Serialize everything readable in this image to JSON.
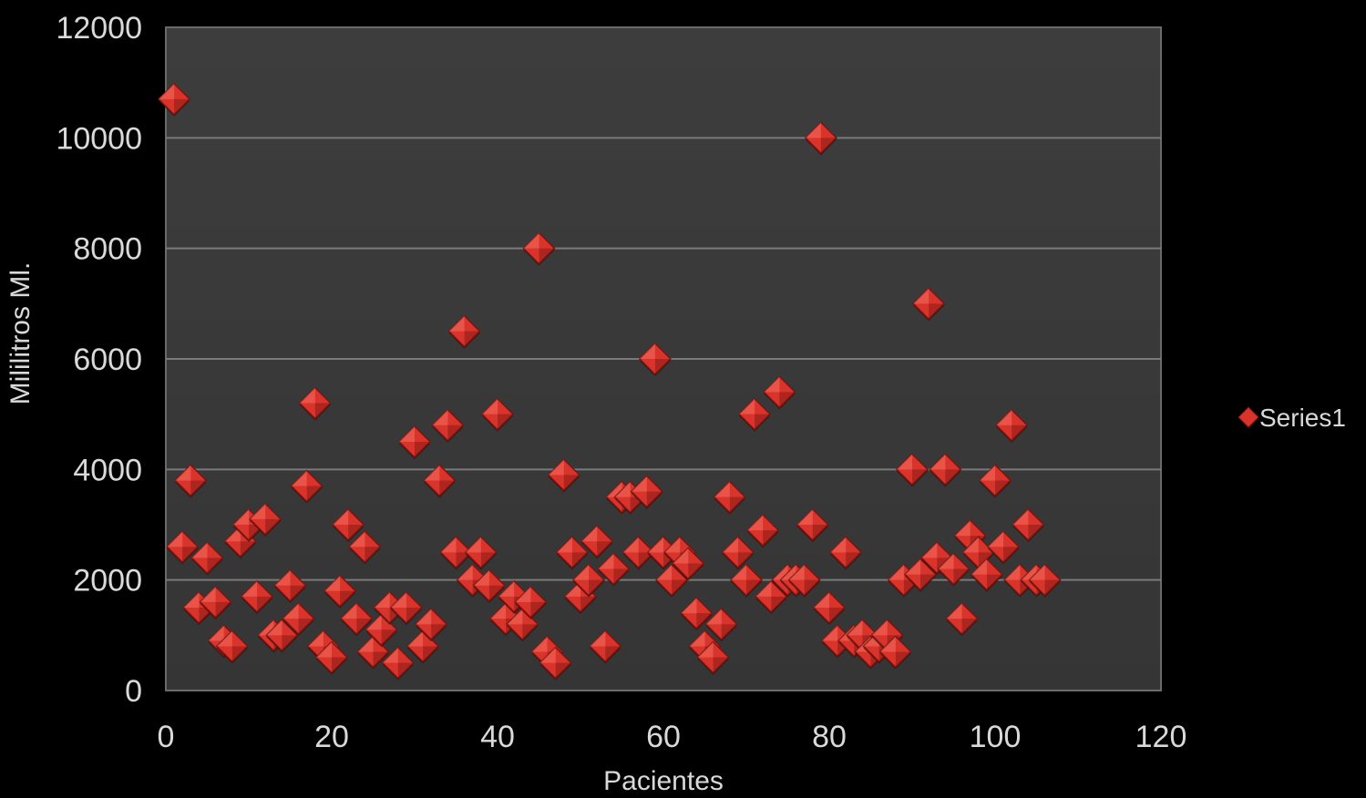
{
  "chart_data": {
    "type": "scatter",
    "title": "",
    "xlabel": "Pacientes",
    "ylabel": "Mililitros Ml.",
    "xlim": [
      0,
      120
    ],
    "ylim": [
      0,
      12000
    ],
    "x_ticks": [
      0,
      20,
      40,
      60,
      80,
      100,
      120
    ],
    "y_ticks": [
      0,
      2000,
      4000,
      6000,
      8000,
      10000,
      12000
    ],
    "grid": "horizontal",
    "legend_position": "right",
    "marker_color": "#d9342b",
    "plot_background": "#3a3a3a",
    "page_background": "#000000",
    "series": [
      {
        "name": "Series1",
        "marker": "diamond",
        "points": [
          [
            1,
            10700
          ],
          [
            2,
            2600
          ],
          [
            3,
            3800
          ],
          [
            4,
            1500
          ],
          [
            5,
            2400
          ],
          [
            6,
            1600
          ],
          [
            7,
            900
          ],
          [
            8,
            800
          ],
          [
            9,
            2700
          ],
          [
            10,
            3000
          ],
          [
            11,
            1700
          ],
          [
            12,
            3100
          ],
          [
            13,
            1000
          ],
          [
            14,
            1000
          ],
          [
            15,
            1900
          ],
          [
            16,
            1300
          ],
          [
            17,
            3700
          ],
          [
            18,
            5200
          ],
          [
            19,
            800
          ],
          [
            20,
            600
          ],
          [
            21,
            1800
          ],
          [
            22,
            3000
          ],
          [
            23,
            1300
          ],
          [
            24,
            2600
          ],
          [
            25,
            700
          ],
          [
            26,
            1100
          ],
          [
            27,
            1500
          ],
          [
            28,
            500
          ],
          [
            29,
            1500
          ],
          [
            30,
            4500
          ],
          [
            31,
            800
          ],
          [
            32,
            1200
          ],
          [
            33,
            3800
          ],
          [
            34,
            4800
          ],
          [
            35,
            2500
          ],
          [
            36,
            6500
          ],
          [
            37,
            2000
          ],
          [
            38,
            2500
          ],
          [
            39,
            1900
          ],
          [
            40,
            5000
          ],
          [
            41,
            1300
          ],
          [
            42,
            1700
          ],
          [
            43,
            1200
          ],
          [
            44,
            1600
          ],
          [
            45,
            8000
          ],
          [
            46,
            700
          ],
          [
            47,
            500
          ],
          [
            48,
            3900
          ],
          [
            49,
            2500
          ],
          [
            50,
            1700
          ],
          [
            51,
            2000
          ],
          [
            52,
            2700
          ],
          [
            53,
            800
          ],
          [
            54,
            2200
          ],
          [
            55,
            3500
          ],
          [
            56,
            3500
          ],
          [
            57,
            2500
          ],
          [
            58,
            3600
          ],
          [
            59,
            6000
          ],
          [
            60,
            2500
          ],
          [
            61,
            2000
          ],
          [
            62,
            2500
          ],
          [
            63,
            2300
          ],
          [
            64,
            1400
          ],
          [
            65,
            800
          ],
          [
            66,
            600
          ],
          [
            67,
            1200
          ],
          [
            68,
            3500
          ],
          [
            69,
            2500
          ],
          [
            70,
            2000
          ],
          [
            71,
            5000
          ],
          [
            72,
            2900
          ],
          [
            73,
            1700
          ],
          [
            74,
            5400
          ],
          [
            75,
            2000
          ],
          [
            76,
            2000
          ],
          [
            77,
            2000
          ],
          [
            78,
            3000
          ],
          [
            79,
            10000
          ],
          [
            80,
            1500
          ],
          [
            81,
            900
          ],
          [
            82,
            2500
          ],
          [
            83,
            900
          ],
          [
            84,
            1000
          ],
          [
            85,
            700
          ],
          [
            86,
            800
          ],
          [
            87,
            1000
          ],
          [
            88,
            700
          ],
          [
            89,
            2000
          ],
          [
            90,
            4000
          ],
          [
            91,
            2100
          ],
          [
            92,
            7000
          ],
          [
            93,
            2400
          ],
          [
            94,
            4000
          ],
          [
            95,
            2200
          ],
          [
            96,
            1300
          ],
          [
            97,
            2800
          ],
          [
            98,
            2500
          ],
          [
            99,
            2100
          ],
          [
            100,
            3800
          ],
          [
            101,
            2600
          ],
          [
            102,
            4800
          ],
          [
            103,
            2000
          ],
          [
            104,
            3000
          ],
          [
            105,
            2000
          ],
          [
            106,
            2000
          ]
        ]
      }
    ]
  }
}
